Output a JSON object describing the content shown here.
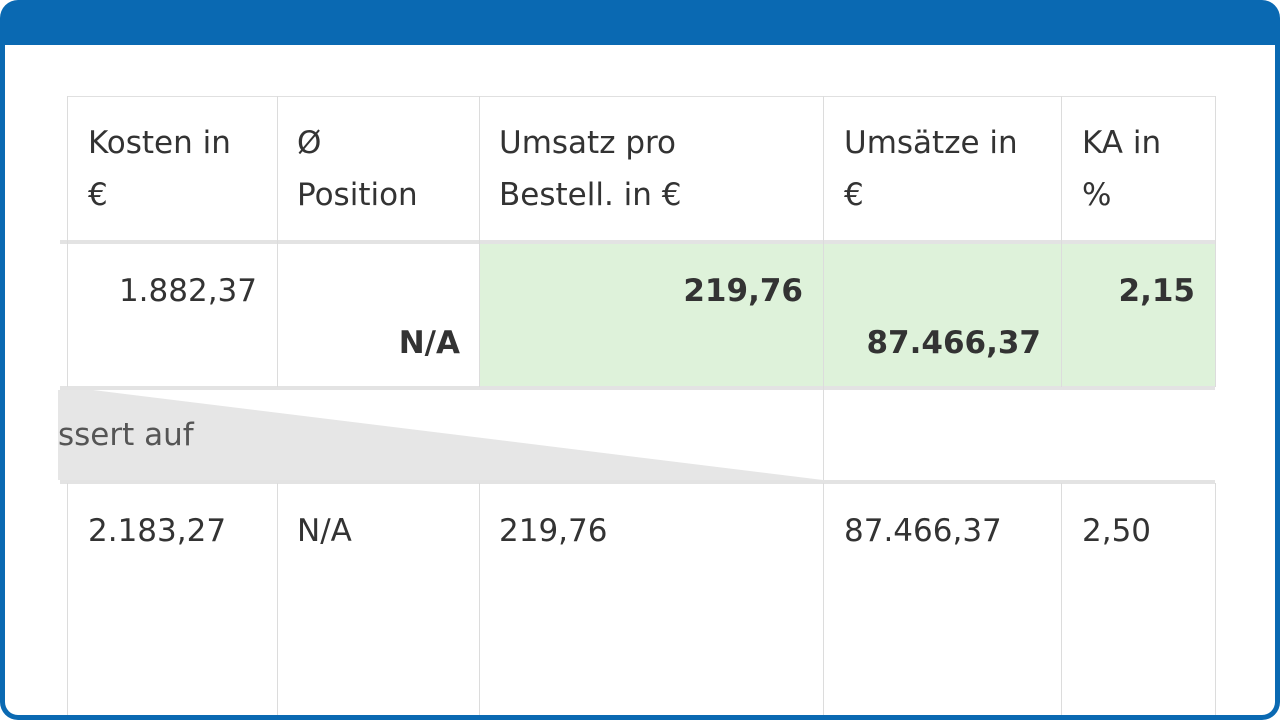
{
  "header": {
    "kosten": [
      "Kosten in",
      "€"
    ],
    "position": [
      "Ø",
      "Position"
    ],
    "umsatz_pro_bestell": [
      "Umsatz pro",
      "Bestell. in €"
    ],
    "umsaetze": [
      "Umsätze in",
      "€"
    ],
    "ka": [
      "KA in",
      "%"
    ]
  },
  "row_before": {
    "kosten": "1.882,37",
    "position": "N/A",
    "umsatz_pro_bestell": "219,76",
    "umsaetze": "87.466,37",
    "ka": "2,15"
  },
  "divider": {
    "text": "ssert auf"
  },
  "row_after": {
    "kosten": "2.183,27",
    "position": "N/A",
    "umsatz_pro_bestell": "219,76",
    "umsaetze": "87.466,37",
    "ka": "2,50"
  },
  "colors": {
    "frame": "#0a69b2",
    "highlight": "#def2da"
  }
}
